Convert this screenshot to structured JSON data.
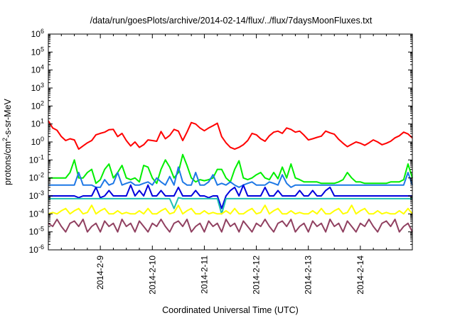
{
  "chart_data": {
    "type": "line",
    "title": "/data/run/goesPlots/archive/2014-02-14/flux/../flux/7daysMoonFluxes.txt",
    "xlabel": "Coordinated Universal Time (UTC)",
    "ylabel_parts": {
      "base": "protons/cm",
      "sup": "2",
      "rest": "-s-sr-MeV"
    },
    "y_scale": "log",
    "ylim_exp": [
      -6,
      6
    ],
    "y_ticks": [
      {
        "exp": -6,
        "base": "10",
        "sup": "-6"
      },
      {
        "exp": -5,
        "base": "10",
        "sup": "-5"
      },
      {
        "exp": -4,
        "base": "10",
        "sup": "-4"
      },
      {
        "exp": -3,
        "base": "10",
        "sup": "-3"
      },
      {
        "exp": -2,
        "base": "10",
        "sup": "-2"
      },
      {
        "exp": -1,
        "base": "10",
        "sup": "-1"
      },
      {
        "exp": 0,
        "base": "10",
        "sup": "0"
      },
      {
        "exp": 1,
        "base": "10",
        "sup": "1"
      },
      {
        "exp": 2,
        "base": "10",
        "sup": "2"
      },
      {
        "exp": 3,
        "base": "10",
        "sup": "3"
      },
      {
        "exp": 4,
        "base": "10",
        "sup": "4"
      },
      {
        "exp": 5,
        "base": "10",
        "sup": "5"
      },
      {
        "exp": 6,
        "base": "10",
        "sup": "6"
      }
    ],
    "x_range": [
      "2014-02-08 00:00",
      "2014-02-15 00:00"
    ],
    "x_ticks": [
      "2014-2-9",
      "2014-2-10",
      "2014-2-11",
      "2014-2-12",
      "2014-2-13",
      "2014-2-14"
    ],
    "x_tick_dates": [
      "2014-02-09",
      "2014-02-10",
      "2014-02-11",
      "2014-02-12",
      "2014-02-13",
      "2014-02-14"
    ],
    "grid": false,
    "legend": "none",
    "x": [
      "2014-02-08 00:00",
      "2014-02-08 02:00",
      "2014-02-08 04:00",
      "2014-02-08 06:00",
      "2014-02-08 08:00",
      "2014-02-08 10:00",
      "2014-02-08 12:00",
      "2014-02-08 14:00",
      "2014-02-08 16:00",
      "2014-02-08 18:00",
      "2014-02-08 20:00",
      "2014-02-08 22:00",
      "2014-02-09 00:00",
      "2014-02-09 02:00",
      "2014-02-09 04:00",
      "2014-02-09 06:00",
      "2014-02-09 08:00",
      "2014-02-09 10:00",
      "2014-02-09 12:00",
      "2014-02-09 14:00",
      "2014-02-09 16:00",
      "2014-02-09 18:00",
      "2014-02-09 20:00",
      "2014-02-09 22:00",
      "2014-02-10 00:00",
      "2014-02-10 02:00",
      "2014-02-10 04:00",
      "2014-02-10 06:00",
      "2014-02-10 08:00",
      "2014-02-10 10:00",
      "2014-02-10 12:00",
      "2014-02-10 14:00",
      "2014-02-10 16:00",
      "2014-02-10 18:00",
      "2014-02-10 20:00",
      "2014-02-10 22:00",
      "2014-02-11 00:00",
      "2014-02-11 02:00",
      "2014-02-11 04:00",
      "2014-02-11 06:00",
      "2014-02-11 08:00",
      "2014-02-11 10:00",
      "2014-02-11 12:00",
      "2014-02-11 14:00",
      "2014-02-11 16:00",
      "2014-02-11 18:00",
      "2014-02-11 20:00",
      "2014-02-11 22:00",
      "2014-02-12 00:00",
      "2014-02-12 02:00",
      "2014-02-12 04:00",
      "2014-02-12 06:00",
      "2014-02-12 08:00",
      "2014-02-12 10:00",
      "2014-02-12 12:00",
      "2014-02-12 14:00",
      "2014-02-12 16:00",
      "2014-02-12 18:00",
      "2014-02-12 20:00",
      "2014-02-12 22:00",
      "2014-02-13 00:00",
      "2014-02-13 02:00",
      "2014-02-13 04:00",
      "2014-02-13 06:00",
      "2014-02-13 08:00",
      "2014-02-13 10:00",
      "2014-02-13 12:00",
      "2014-02-13 14:00",
      "2014-02-13 16:00",
      "2014-02-13 18:00",
      "2014-02-13 20:00",
      "2014-02-13 22:00",
      "2014-02-14 00:00",
      "2014-02-14 02:00",
      "2014-02-14 04:00",
      "2014-02-14 06:00",
      "2014-02-14 08:00",
      "2014-02-14 10:00",
      "2014-02-14 12:00",
      "2014-02-14 14:00",
      "2014-02-14 16:00",
      "2014-02-14 18:00",
      "2014-02-14 20:00",
      "2014-02-14 22:00",
      "2014-02-15 00:00"
    ],
    "series": [
      {
        "color": "#ff0000",
        "values": [
          15,
          6,
          4.5,
          2,
          1.2,
          1.5,
          1.3,
          0.4,
          0.6,
          0.9,
          1.2,
          2.5,
          3,
          3.5,
          4.8,
          5,
          2,
          3,
          1.2,
          0.6,
          1,
          0.5,
          0.7,
          1.3,
          1.2,
          1.1,
          3.8,
          1.5,
          2.3,
          5,
          4,
          1.2,
          3.5,
          12,
          10,
          6,
          4.2,
          6,
          8,
          11,
          2,
          0.9,
          0.5,
          0.4,
          0.5,
          0.7,
          1.2,
          3,
          2.5,
          1.5,
          1.1,
          2.2,
          3.5,
          4,
          3,
          6,
          5,
          3.5,
          4,
          2.4,
          1.3,
          1.5,
          1.8,
          2.1,
          4,
          3.2,
          2.7,
          1.4,
          0.85,
          0.55,
          0.75,
          1,
          0.85,
          0.65,
          0.9,
          1.3,
          1,
          0.7,
          0.85,
          1.1,
          1.7,
          2.2,
          3.5,
          2.8,
          1.7
        ]
      },
      {
        "color": "#00ee00",
        "values": [
          0.01,
          0.01,
          0.01,
          0.01,
          0.01,
          0.02,
          0.1,
          0.01,
          0.01,
          0.02,
          0.03,
          0.005,
          0.008,
          0.03,
          0.06,
          0.01,
          0.02,
          0.05,
          0.01,
          0.008,
          0.01,
          0.006,
          0.05,
          0.04,
          0.01,
          0.005,
          0.03,
          0.1,
          0.04,
          0.01,
          0.02,
          0.2,
          0.05,
          0.01,
          0.006,
          0.008,
          0.007,
          0.008,
          0.01,
          0.03,
          0.03,
          0.01,
          0.006,
          0.03,
          0.09,
          0.01,
          0.008,
          0.01,
          0.015,
          0.02,
          0.01,
          0.008,
          0.02,
          0.009,
          0.04,
          0.01,
          0.06,
          0.01,
          0.008,
          0.006,
          0.006,
          0.006,
          0.006,
          0.005,
          0.005,
          0.005,
          0.005,
          0.006,
          0.008,
          0.02,
          0.01,
          0.006,
          0.006,
          0.005,
          0.005,
          0.005,
          0.005,
          0.005,
          0.005,
          0.006,
          0.006,
          0.006,
          0.008,
          0.06,
          0.01
        ]
      },
      {
        "color": "#1e78e6",
        "values": [
          0.004,
          0.004,
          0.004,
          0.004,
          0.004,
          0.004,
          0.004,
          0.02,
          0.004,
          0.004,
          0.004,
          0.003,
          0.003,
          0.008,
          0.004,
          0.005,
          0.02,
          0.004,
          0.005,
          0.006,
          0.004,
          0.004,
          0.005,
          0.006,
          0.004,
          0.01,
          0.006,
          0.004,
          0.012,
          0.004,
          0.04,
          0.006,
          0.004,
          0.004,
          0.02,
          0.004,
          0.004,
          0.006,
          0.015,
          0.004,
          0.005,
          0.004,
          0.006,
          0.004,
          0.003,
          0.004,
          0.005,
          0.006,
          0.004,
          0.004,
          0.004,
          0.006,
          0.005,
          0.004,
          0.015,
          0.005,
          0.003,
          0.004,
          0.004,
          0.004,
          0.004,
          0.004,
          0.004,
          0.004,
          0.004,
          0.004,
          0.004,
          0.004,
          0.004,
          0.004,
          0.004,
          0.004,
          0.004,
          0.004,
          0.004,
          0.004,
          0.004,
          0.004,
          0.004,
          0.004,
          0.004,
          0.004,
          0.004,
          0.02,
          0.004
        ]
      },
      {
        "color": "#0000dd",
        "values": [
          0.001,
          0.001,
          0.001,
          0.001,
          0.001,
          0.001,
          0.001,
          0.0008,
          0.001,
          0.001,
          0.001,
          0.003,
          0.0008,
          0.001,
          0.002,
          0.001,
          0.001,
          0.001,
          0.001,
          0.004,
          0.001,
          0.002,
          0.001,
          0.004,
          0.001,
          0.001,
          0.002,
          0.001,
          0.001,
          0.001,
          0.003,
          0.001,
          0.001,
          0.001,
          0.002,
          0.001,
          0.001,
          0.0008,
          0.001,
          0.001,
          0.0002,
          0.001,
          0.002,
          0.003,
          0.001,
          0.004,
          0.001,
          0.001,
          0.001,
          0.001,
          0.003,
          0.001,
          0.001,
          0.002,
          0.001,
          0.001,
          0.001,
          0.001,
          0.002,
          0.001,
          0.001,
          0.002,
          0.001,
          0.001,
          0.002,
          0.003,
          0.001,
          0.001,
          0.001,
          0.001,
          0.001,
          0.001,
          0.001,
          0.001,
          0.001,
          0.001,
          0.001,
          0.001,
          0.001,
          0.001,
          0.001,
          0.001,
          0.001,
          0.001,
          0.001
        ]
      },
      {
        "color": "#20c0b0",
        "values": [
          0.0007,
          0.0007,
          0.0007,
          0.0007,
          0.0007,
          0.0007,
          0.0007,
          0.0007,
          0.0007,
          0.0007,
          0.0007,
          0.0007,
          0.0007,
          0.0007,
          0.0007,
          0.0007,
          0.0007,
          0.0007,
          0.0007,
          0.0007,
          0.0007,
          0.0007,
          0.0007,
          0.0007,
          0.0007,
          0.0007,
          0.0007,
          0.0007,
          0.0007,
          0.0002,
          0.0008,
          0.0007,
          0.0007,
          0.0007,
          0.0007,
          0.0007,
          0.0007,
          0.0007,
          0.0007,
          0.0007,
          0.0001,
          0.0007,
          0.0007,
          0.0007,
          0.0007,
          0.0007,
          0.0007,
          0.0007,
          0.0007,
          0.0007,
          0.0007,
          0.0007,
          0.0007,
          0.0007,
          0.0007,
          0.0007,
          0.0007,
          0.0007,
          0.0007,
          0.0007,
          0.0007,
          0.0007,
          0.0007,
          0.0007,
          0.0007,
          0.0007,
          0.0007,
          0.0007,
          0.0007,
          0.0007,
          0.0007,
          0.0007,
          0.0007,
          0.0007,
          0.0007,
          0.0007,
          0.0007,
          0.0007,
          0.0007,
          0.0007,
          0.0007,
          0.0007,
          0.0007,
          0.0007,
          0.0007
        ]
      },
      {
        "color": "#ffff00",
        "values": [
          0.0001,
          0.00012,
          0.0001,
          0.00015,
          0.0002,
          0.0001,
          0.00015,
          0.0002,
          0.0001,
          0.00012,
          0.0003,
          0.0001,
          0.00015,
          0.0002,
          0.0001,
          0.0001,
          0.00015,
          0.0001,
          0.00012,
          0.0001,
          0.0001,
          0.00015,
          0.0001,
          0.0002,
          0.0001,
          0.0001,
          0.00015,
          0.0002,
          0.0001,
          0.00012,
          0.0003,
          0.0001,
          0.00015,
          0.0002,
          0.0001,
          0.0001,
          0.00015,
          0.0001,
          0.00012,
          0.0001,
          0.0001,
          0.00015,
          0.0001,
          0.0002,
          0.0001,
          0.0001,
          0.00015,
          0.0002,
          0.0001,
          0.00012,
          0.0003,
          0.0001,
          0.00015,
          0.0002,
          0.0001,
          0.0001,
          0.00015,
          0.0001,
          0.00012,
          0.0001,
          0.0001,
          0.00015,
          0.0001,
          0.0002,
          0.0001,
          0.0001,
          0.00015,
          0.0002,
          0.0001,
          0.00012,
          0.0003,
          0.0001,
          0.00015,
          0.0002,
          0.0001,
          0.0001,
          0.00015,
          0.0001,
          0.00012,
          0.0001,
          0.0001,
          0.00015,
          0.0001,
          0.0002,
          0.0001
        ]
      },
      {
        "color": "#904060",
        "values": [
          3e-05,
          2e-05,
          5e-05,
          2e-05,
          1e-05,
          3e-05,
          4e-05,
          2e-05,
          5e-05,
          1e-05,
          2e-05,
          3e-05,
          1e-05,
          4e-05,
          2e-05,
          3e-05,
          1e-05,
          5e-05,
          2e-05,
          3e-05,
          1e-05,
          4e-05,
          2e-05,
          1e-05,
          3e-05,
          2e-05,
          5e-05,
          2e-05,
          1e-05,
          3e-05,
          4e-05,
          2e-05,
          5e-05,
          1e-05,
          2e-05,
          3e-05,
          1e-05,
          4e-05,
          2e-05,
          3e-05,
          1e-05,
          5e-05,
          2e-05,
          3e-05,
          1e-05,
          4e-05,
          2e-05,
          1e-05,
          3e-05,
          2e-05,
          5e-05,
          2e-05,
          1e-05,
          3e-05,
          4e-05,
          2e-05,
          5e-05,
          1e-05,
          2e-05,
          3e-05,
          1e-05,
          4e-05,
          2e-05,
          3e-05,
          1e-05,
          5e-05,
          2e-05,
          3e-05,
          1e-05,
          4e-05,
          2e-05,
          1e-05,
          3e-05,
          2e-05,
          5e-05,
          2e-05,
          1e-05,
          3e-05,
          4e-05,
          2e-05,
          5e-05,
          1e-05,
          2e-05,
          3e-05,
          1e-05
        ]
      }
    ]
  }
}
